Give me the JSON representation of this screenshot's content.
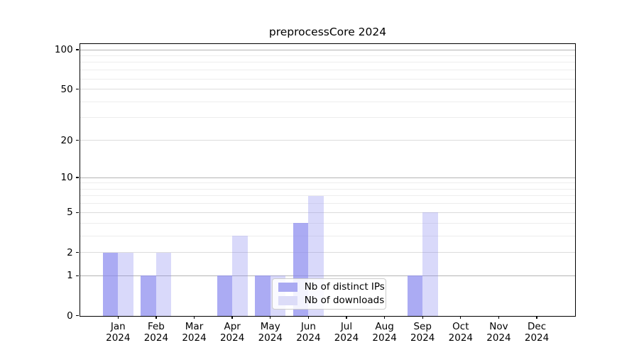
{
  "chart_data": {
    "type": "bar",
    "title": "preprocessCore 2024",
    "categories": [
      "Jan 2024",
      "Feb 2024",
      "Mar 2024",
      "Apr 2024",
      "May 2024",
      "Jun 2024",
      "Jul 2024",
      "Aug 2024",
      "Sep 2024",
      "Oct 2024",
      "Nov 2024",
      "Dec 2024"
    ],
    "series": [
      {
        "name": "Nb of distinct IPs",
        "values": [
          2,
          1,
          0,
          1,
          1,
          4,
          0,
          0,
          1,
          0,
          0,
          0
        ],
        "fill": "rgba(138,138,238,0.72)",
        "legend_color": "#aaaaf2"
      },
      {
        "name": "Nb of downloads",
        "values": [
          2,
          2,
          0,
          3,
          1,
          7,
          0,
          0,
          5,
          0,
          0,
          0
        ],
        "fill": "rgba(138,138,238,0.32)",
        "legend_color": "#dcdcf8"
      }
    ],
    "yscale": "log1p",
    "ylim": [
      0,
      111
    ],
    "yticks": [
      0,
      1,
      2,
      5,
      10,
      20,
      50,
      100
    ],
    "gridlines": {
      "major": [
        1,
        10,
        100
      ],
      "sub": [
        2,
        5,
        20,
        50
      ],
      "minor": [
        3,
        4,
        6,
        7,
        8,
        9,
        30,
        40,
        60,
        70,
        80,
        90
      ]
    },
    "grid_colors": {
      "major": "#b4b4b4",
      "sub": "#dcdcdc",
      "minor": "#ededed"
    },
    "legend": {
      "position": "lower center",
      "entries": [
        "Nb of distinct IPs",
        "Nb of downloads"
      ]
    },
    "xlabel": "",
    "ylabel": ""
  }
}
